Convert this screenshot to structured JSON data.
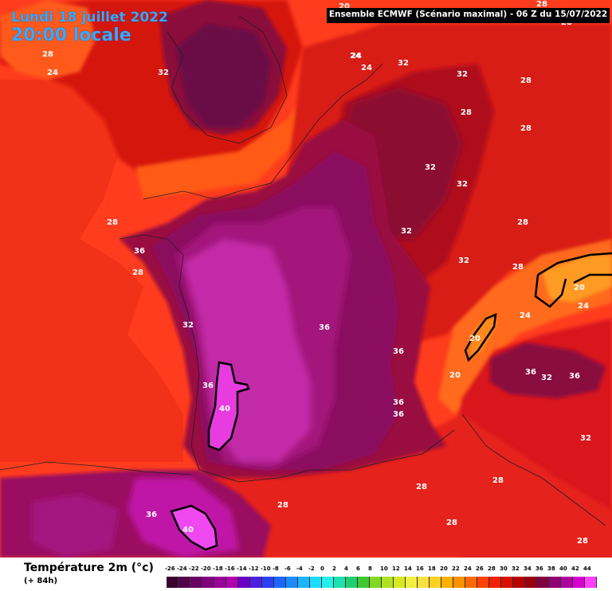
{
  "header": {
    "date": "Lundi 18 juillet 2022",
    "time": "20:00 locale",
    "model": "Ensemble ECMWF  (Scénario maximal) - 06 Z du 15/07/2022"
  },
  "legend": {
    "title": "Température 2m (°c)",
    "lead": "(+ 84h)",
    "ticks": [
      "-26",
      "-24",
      "-22",
      "-20",
      "-18",
      "-16",
      "-14",
      "-12",
      "-10",
      "-8",
      "-6",
      "-4",
      "-2",
      "0",
      "2",
      "4",
      "6",
      "8",
      "10",
      "12",
      "14",
      "16",
      "18",
      "20",
      "22",
      "24",
      "26",
      "28",
      "30",
      "32",
      "34",
      "36",
      "38",
      "40",
      "42",
      "44"
    ],
    "colors": [
      "#3a0030",
      "#52004a",
      "#6a0064",
      "#82007e",
      "#9a0098",
      "#b000b0",
      "#6a00c8",
      "#4a20e0",
      "#2a40f0",
      "#1a66ff",
      "#1a8cff",
      "#1ab4ff",
      "#1adcff",
      "#20f0e8",
      "#20e0b0",
      "#20d070",
      "#40c830",
      "#80d820",
      "#b0e020",
      "#d8e820",
      "#f0f040",
      "#f8e040",
      "#ffd020",
      "#ffb000",
      "#ff9000",
      "#ff6a00",
      "#ff4000",
      "#f02000",
      "#d81000",
      "#b80000",
      "#980010",
      "#800040",
      "#900070",
      "#b000a0",
      "#d800d0",
      "#ff40ff"
    ]
  },
  "isotherm_labels": [
    {
      "text": "24"
    },
    {
      "text": "28"
    },
    {
      "text": "24"
    },
    {
      "text": "32"
    },
    {
      "text": "20"
    },
    {
      "text": "24"
    },
    {
      "text": "28"
    },
    {
      "text": "32"
    },
    {
      "text": "32"
    },
    {
      "text": "28"
    },
    {
      "text": "28"
    },
    {
      "text": "28"
    },
    {
      "text": "32"
    },
    {
      "text": "32"
    },
    {
      "text": "24"
    },
    {
      "text": "28"
    },
    {
      "text": "32"
    },
    {
      "text": "36"
    },
    {
      "text": "28"
    },
    {
      "text": "32"
    },
    {
      "text": "28"
    },
    {
      "text": "20"
    },
    {
      "text": "24"
    },
    {
      "text": "24"
    },
    {
      "text": "32"
    },
    {
      "text": "36"
    },
    {
      "text": "36"
    },
    {
      "text": "20"
    },
    {
      "text": "20"
    },
    {
      "text": "36"
    },
    {
      "text": "32"
    },
    {
      "text": "36"
    },
    {
      "text": "36"
    },
    {
      "text": "40"
    },
    {
      "text": "36"
    },
    {
      "text": "36"
    },
    {
      "text": "32"
    },
    {
      "text": "28"
    },
    {
      "text": "28"
    },
    {
      "text": "28"
    },
    {
      "text": "36"
    },
    {
      "text": "40"
    },
    {
      "text": "28"
    },
    {
      "text": "28"
    },
    {
      "text": "28"
    },
    {
      "text": "28"
    }
  ]
}
